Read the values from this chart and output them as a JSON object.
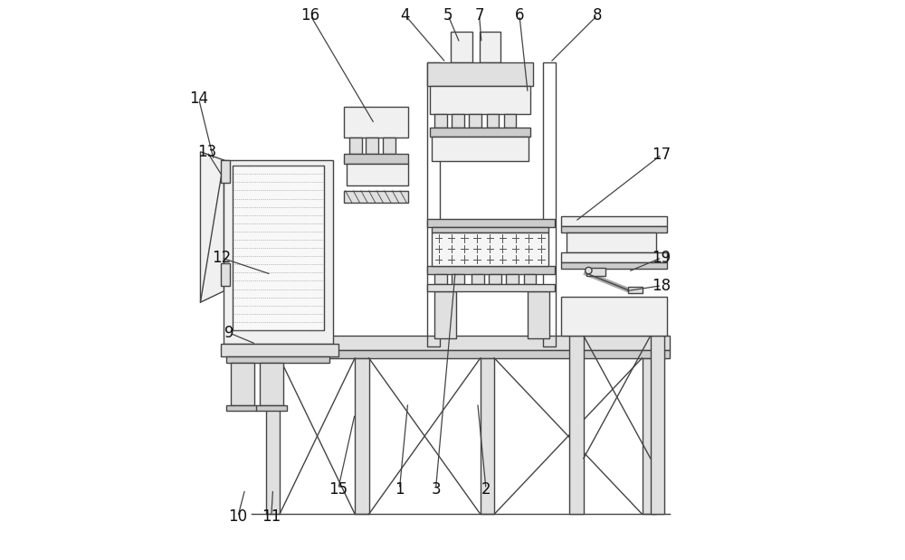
{
  "bg_color": "#ffffff",
  "lc": "#444444",
  "lw": 1.0,
  "fc_light": "#f0f0f0",
  "fc_mid": "#e0e0e0",
  "fc_dark": "#cccccc",
  "annotations": [
    [
      "16",
      [
        0.245,
        0.025
      ],
      [
        0.36,
        0.22
      ]
    ],
    [
      "4",
      [
        0.415,
        0.025
      ],
      [
        0.488,
        0.11
      ]
    ],
    [
      "5",
      [
        0.492,
        0.025
      ],
      [
        0.513,
        0.075
      ]
    ],
    [
      "7",
      [
        0.548,
        0.025
      ],
      [
        0.552,
        0.075
      ]
    ],
    [
      "6",
      [
        0.62,
        0.025
      ],
      [
        0.635,
        0.165
      ]
    ],
    [
      "8",
      [
        0.76,
        0.025
      ],
      [
        0.675,
        0.11
      ]
    ],
    [
      "14",
      [
        0.045,
        0.175
      ],
      [
        0.072,
        0.285
      ]
    ],
    [
      "13",
      [
        0.06,
        0.27
      ],
      [
        0.088,
        0.315
      ]
    ],
    [
      "17",
      [
        0.875,
        0.275
      ],
      [
        0.72,
        0.395
      ]
    ],
    [
      "12",
      [
        0.085,
        0.46
      ],
      [
        0.175,
        0.49
      ]
    ],
    [
      "19",
      [
        0.875,
        0.46
      ],
      [
        0.815,
        0.485
      ]
    ],
    [
      "18",
      [
        0.875,
        0.51
      ],
      [
        0.81,
        0.52
      ]
    ],
    [
      "9",
      [
        0.1,
        0.595
      ],
      [
        0.148,
        0.615
      ]
    ],
    [
      "15",
      [
        0.295,
        0.875
      ],
      [
        0.325,
        0.74
      ]
    ],
    [
      "1",
      [
        0.405,
        0.875
      ],
      [
        0.42,
        0.72
      ]
    ],
    [
      "3",
      [
        0.47,
        0.875
      ],
      [
        0.505,
        0.485
      ]
    ],
    [
      "2",
      [
        0.56,
        0.875
      ],
      [
        0.545,
        0.72
      ]
    ],
    [
      "10",
      [
        0.115,
        0.925
      ],
      [
        0.128,
        0.875
      ]
    ],
    [
      "11",
      [
        0.175,
        0.925
      ],
      [
        0.178,
        0.875
      ]
    ]
  ]
}
